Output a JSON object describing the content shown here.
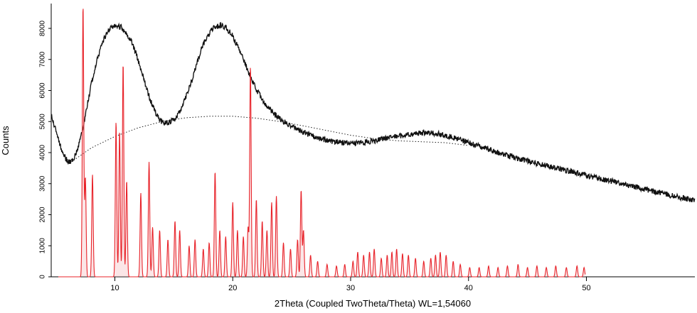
{
  "chart_data": {
    "type": "line",
    "title": "",
    "xlabel": "2Theta (Coupled TwoTheta/Theta) WL=1,54060",
    "ylabel": "Counts",
    "xlim": [
      4.6,
      59.2
    ],
    "ylim": [
      0,
      8800
    ],
    "x_ticks": [
      10,
      20,
      30,
      40,
      50
    ],
    "y_ticks": [
      0,
      1000,
      2000,
      3000,
      4000,
      5000,
      6000,
      7000,
      8000
    ],
    "grid": false,
    "legend": "none",
    "colors": {
      "measured": "#111111",
      "background": "#222222",
      "reference": "#e8232a",
      "reference_peak_fill": "#f3b6b9"
    },
    "series": [
      {
        "style": "measured-pattern",
        "points": [
          [
            4.6,
            5200
          ],
          [
            5.0,
            4700
          ],
          [
            5.5,
            4050
          ],
          [
            6.0,
            3700
          ],
          [
            6.5,
            3750
          ],
          [
            7.0,
            4300
          ],
          [
            7.5,
            5200
          ],
          [
            8.0,
            6200
          ],
          [
            8.5,
            7000
          ],
          [
            9.0,
            7600
          ],
          [
            9.5,
            7950
          ],
          [
            10.0,
            8100
          ],
          [
            10.5,
            8050
          ],
          [
            11.0,
            7850
          ],
          [
            11.5,
            7500
          ],
          [
            12.0,
            6950
          ],
          [
            12.5,
            6300
          ],
          [
            13.0,
            5700
          ],
          [
            13.5,
            5250
          ],
          [
            14.0,
            4980
          ],
          [
            14.5,
            4950
          ],
          [
            15.0,
            5050
          ],
          [
            15.5,
            5300
          ],
          [
            16.0,
            5750
          ],
          [
            16.5,
            6300
          ],
          [
            17.0,
            6950
          ],
          [
            17.5,
            7500
          ],
          [
            18.0,
            7850
          ],
          [
            18.5,
            8050
          ],
          [
            19.0,
            8100
          ],
          [
            19.5,
            8000
          ],
          [
            20.0,
            7750
          ],
          [
            20.5,
            7350
          ],
          [
            21.0,
            6900
          ],
          [
            21.5,
            6450
          ],
          [
            22.0,
            6050
          ],
          [
            22.5,
            5700
          ],
          [
            23.0,
            5450
          ],
          [
            23.5,
            5250
          ],
          [
            24.0,
            5080
          ],
          [
            25.0,
            4850
          ],
          [
            26.0,
            4650
          ],
          [
            27.0,
            4500
          ],
          [
            28.0,
            4400
          ],
          [
            29.0,
            4330
          ],
          [
            30.0,
            4300
          ],
          [
            31.0,
            4320
          ],
          [
            32.0,
            4380
          ],
          [
            33.0,
            4450
          ],
          [
            34.0,
            4530
          ],
          [
            35.0,
            4600
          ],
          [
            36.0,
            4630
          ],
          [
            37.0,
            4620
          ],
          [
            38.0,
            4560
          ],
          [
            39.0,
            4450
          ],
          [
            40.0,
            4320
          ],
          [
            41.0,
            4190
          ],
          [
            42.0,
            4060
          ],
          [
            43.0,
            3940
          ],
          [
            44.0,
            3830
          ],
          [
            45.0,
            3730
          ],
          [
            46.0,
            3630
          ],
          [
            47.0,
            3540
          ],
          [
            48.0,
            3450
          ],
          [
            49.0,
            3360
          ],
          [
            50.0,
            3270
          ],
          [
            51.0,
            3180
          ],
          [
            52.0,
            3090
          ],
          [
            53.0,
            3000
          ],
          [
            54.0,
            2910
          ],
          [
            55.0,
            2820
          ],
          [
            56.0,
            2730
          ],
          [
            57.0,
            2640
          ],
          [
            58.0,
            2550
          ],
          [
            59.2,
            2450
          ]
        ]
      },
      {
        "style": "background-dotted",
        "points": [
          [
            6.3,
            3700
          ],
          [
            8.0,
            4150
          ],
          [
            10.0,
            4520
          ],
          [
            12.0,
            4800
          ],
          [
            14.0,
            5000
          ],
          [
            16.0,
            5120
          ],
          [
            18.0,
            5170
          ],
          [
            20.0,
            5170
          ],
          [
            22.0,
            5110
          ],
          [
            24.0,
            5000
          ],
          [
            26.0,
            4860
          ],
          [
            28.0,
            4710
          ],
          [
            30.0,
            4560
          ],
          [
            32.0,
            4450
          ],
          [
            34.0,
            4380
          ],
          [
            36.0,
            4350
          ],
          [
            38.0,
            4320
          ],
          [
            40.0,
            4230
          ]
        ]
      },
      {
        "style": "reference-pattern",
        "peaks": [
          [
            7.3,
            8750
          ],
          [
            7.5,
            3200
          ],
          [
            8.1,
            3300
          ],
          [
            10.1,
            5000
          ],
          [
            10.4,
            4700
          ],
          [
            10.7,
            6900
          ],
          [
            11.0,
            3100
          ],
          [
            12.2,
            2700
          ],
          [
            12.9,
            3700
          ],
          [
            13.2,
            1600
          ],
          [
            13.8,
            1500
          ],
          [
            14.5,
            1200
          ],
          [
            15.1,
            1800
          ],
          [
            15.5,
            1500
          ],
          [
            16.3,
            1000
          ],
          [
            16.8,
            1200
          ],
          [
            17.5,
            900
          ],
          [
            18.0,
            1100
          ],
          [
            18.5,
            3400
          ],
          [
            18.9,
            1500
          ],
          [
            19.4,
            1300
          ],
          [
            20.0,
            2400
          ],
          [
            20.4,
            1500
          ],
          [
            20.9,
            1300
          ],
          [
            21.3,
            1600
          ],
          [
            21.5,
            6800
          ],
          [
            22.0,
            2500
          ],
          [
            22.5,
            1800
          ],
          [
            22.9,
            1500
          ],
          [
            23.3,
            2400
          ],
          [
            23.7,
            2600
          ],
          [
            24.3,
            1100
          ],
          [
            24.9,
            900
          ],
          [
            25.5,
            1200
          ],
          [
            25.8,
            2800
          ],
          [
            26.0,
            1500
          ],
          [
            26.6,
            700
          ],
          [
            27.2,
            500
          ],
          [
            28.0,
            400
          ],
          [
            28.8,
            350
          ],
          [
            29.5,
            400
          ],
          [
            30.2,
            500
          ],
          [
            30.6,
            800
          ],
          [
            31.1,
            700
          ],
          [
            31.6,
            800
          ],
          [
            32.0,
            900
          ],
          [
            32.6,
            600
          ],
          [
            33.1,
            700
          ],
          [
            33.5,
            800
          ],
          [
            33.9,
            900
          ],
          [
            34.4,
            750
          ],
          [
            34.9,
            700
          ],
          [
            35.5,
            600
          ],
          [
            36.2,
            500
          ],
          [
            36.8,
            600
          ],
          [
            37.2,
            700
          ],
          [
            37.6,
            800
          ],
          [
            38.1,
            700
          ],
          [
            38.7,
            500
          ],
          [
            39.3,
            400
          ],
          [
            40.1,
            300
          ],
          [
            40.9,
            300
          ],
          [
            41.7,
            350
          ],
          [
            42.5,
            300
          ],
          [
            43.3,
            350
          ],
          [
            44.2,
            400
          ],
          [
            45.0,
            300
          ],
          [
            45.8,
            350
          ],
          [
            46.6,
            300
          ],
          [
            47.4,
            350
          ],
          [
            48.3,
            300
          ],
          [
            49.2,
            350
          ],
          [
            49.8,
            300
          ]
        ],
        "end": 49.9
      }
    ]
  }
}
